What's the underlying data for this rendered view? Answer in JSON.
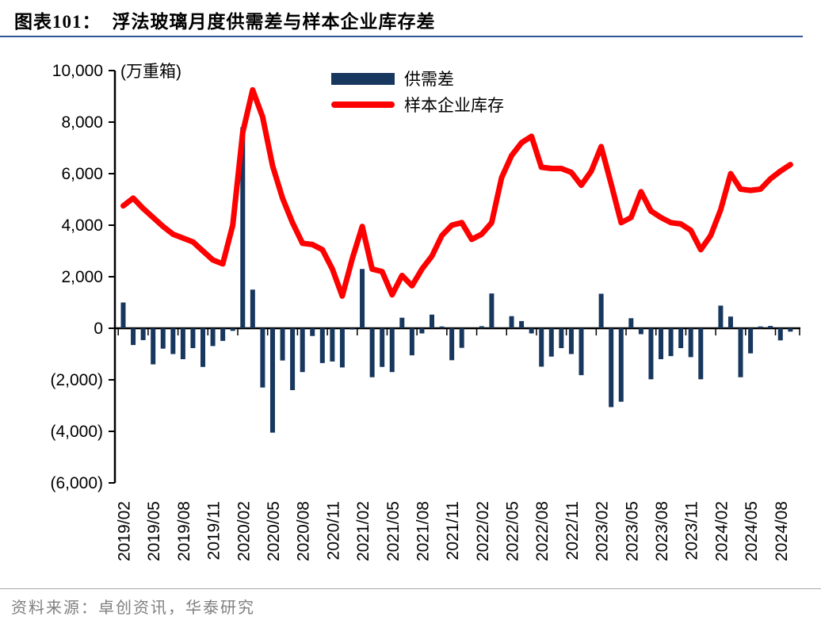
{
  "header": {
    "chart_label": "图表101：",
    "title": "浮法玻璃月度供需差与样本企业库存差"
  },
  "source": {
    "text": "资料来源：卓创资讯，华泰研究"
  },
  "chart_data": {
    "type": "combo-bar-line",
    "unit_label": "(万重箱)",
    "legend_position": "top-center",
    "grid": false,
    "colors": {
      "bar": "#17375E",
      "line": "#FE0000"
    },
    "y_axis": {
      "min": -6000,
      "max": 10000,
      "step": 2000,
      "tick_labels": [
        "10,000",
        "8,000",
        "6,000",
        "4,000",
        "2,000",
        "0",
        "(2,000)",
        "(4,000)",
        "(6,000)"
      ]
    },
    "x_tick_labels": [
      "2019/02",
      "2019/05",
      "2019/08",
      "2019/11",
      "2020/02",
      "2020/05",
      "2020/08",
      "2020/11",
      "2021/02",
      "2021/05",
      "2021/08",
      "2021/11",
      "2022/02",
      "2022/05",
      "2022/08",
      "2022/11",
      "2023/02",
      "2023/05",
      "2023/08",
      "2023/11",
      "2024/02",
      "2024/05",
      "2024/08"
    ],
    "categories": [
      "2019/02",
      "2019/03",
      "2019/04",
      "2019/05",
      "2019/06",
      "2019/07",
      "2019/08",
      "2019/09",
      "2019/10",
      "2019/11",
      "2019/12",
      "2020/01",
      "2020/02",
      "2020/03",
      "2020/04",
      "2020/05",
      "2020/06",
      "2020/07",
      "2020/08",
      "2020/09",
      "2020/10",
      "2020/11",
      "2020/12",
      "2021/01",
      "2021/02",
      "2021/03",
      "2021/04",
      "2021/05",
      "2021/06",
      "2021/07",
      "2021/08",
      "2021/09",
      "2021/10",
      "2021/11",
      "2021/12",
      "2022/01",
      "2022/02",
      "2022/03",
      "2022/04",
      "2022/05",
      "2022/06",
      "2022/07",
      "2022/08",
      "2022/09",
      "2022/10",
      "2022/11",
      "2022/12",
      "2023/01",
      "2023/02",
      "2023/03",
      "2023/04",
      "2023/05",
      "2023/06",
      "2023/07",
      "2023/08",
      "2023/09",
      "2023/10",
      "2023/11",
      "2023/12",
      "2024/01",
      "2024/02",
      "2024/03",
      "2024/04",
      "2024/05",
      "2024/06",
      "2024/07",
      "2024/08",
      "2024/09"
    ],
    "series": [
      {
        "name": "供需差",
        "type": "bar",
        "color": "#17375E",
        "values": [
          1000,
          -650,
          -460,
          -1400,
          -790,
          -1000,
          -1200,
          -770,
          -1500,
          -690,
          -490,
          -100,
          7800,
          1500,
          -2300,
          -4050,
          -1250,
          -2400,
          -1700,
          -300,
          -1350,
          -1290,
          -1520,
          -50,
          2300,
          -1900,
          -1500,
          -1700,
          410,
          -1050,
          -200,
          530,
          70,
          -1240,
          -760,
          0,
          80,
          1350,
          0,
          470,
          280,
          -200,
          -1490,
          -1100,
          -770,
          -1000,
          -1820,
          0,
          1340,
          -3060,
          -2850,
          390,
          -230,
          -1980,
          -1200,
          -1080,
          -770,
          -1120,
          -1980,
          0,
          880,
          455,
          -1900,
          -975,
          70,
          90,
          -470,
          -130
        ]
      },
      {
        "name": "样本企业库存",
        "type": "line",
        "color": "#FE0000",
        "values": [
          4750,
          5050,
          4650,
          4300,
          3950,
          3650,
          3500,
          3350,
          3000,
          2650,
          2500,
          4000,
          7600,
          9250,
          8200,
          6300,
          5050,
          4100,
          3300,
          3250,
          3050,
          2300,
          1250,
          2700,
          3950,
          2300,
          2200,
          1300,
          2050,
          1650,
          2300,
          2800,
          3600,
          4000,
          4100,
          3450,
          3650,
          4100,
          5850,
          6700,
          7200,
          7450,
          6250,
          6200,
          6200,
          6050,
          5550,
          6100,
          7050,
          5600,
          4100,
          4300,
          5300,
          4550,
          4300,
          4100,
          4050,
          3800,
          3050,
          3600,
          4600,
          6000,
          5400,
          5350,
          5400,
          5800,
          6100,
          6350
        ]
      }
    ]
  }
}
